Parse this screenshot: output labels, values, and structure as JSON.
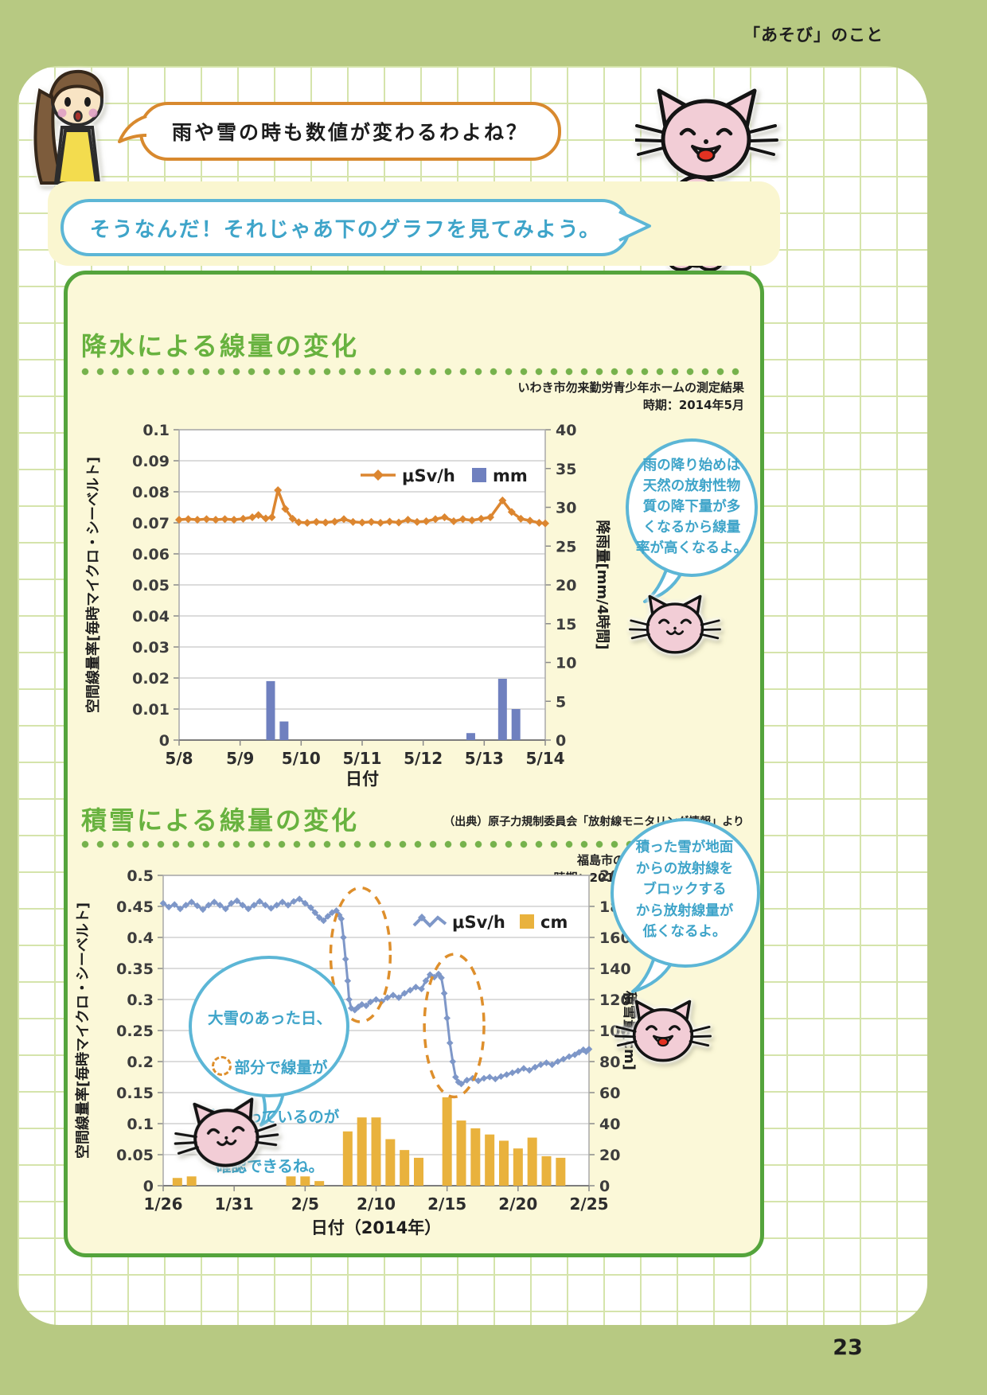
{
  "page": {
    "header": "「あそび」のこと",
    "page_number": "23"
  },
  "dialogue": {
    "girl_bubble": "雨や雪の時も数値が変わるわよね？",
    "reply_bubble": "そうなんだ！それじゃあ下のグラフを見てみよう。"
  },
  "section_rain": {
    "title": "降水による線量の変化",
    "source_line1": "いわき市勿来勤労青少年ホームの測定結果",
    "source_line2": "時期：2014年5月",
    "bubble": "雨の降り始めは\n天然の放射性物\n質の降下量が多\nくなるから線量\n率が高くなるよ。"
  },
  "section_snow": {
    "title": "積雪による線量の変化",
    "source_note": "（出典）原子力規制委員会「放射線モニタリング情報」より",
    "source_line1": "福島市の信夫山公園の測定結果",
    "source_line2": "時期：2014年1月26日～2月25日",
    "bubble_left_line1": "大雪のあった日、",
    "bubble_left_line2": "部分で線量が",
    "bubble_left_line3": "低くなっているのが",
    "bubble_left_line4": "確認できるね。",
    "bubble_right": "積った雪が地面\nからの放射線を\nブロックする\nから放射線量が\n低くなるよ。"
  },
  "chart_data": [
    {
      "id": "rain",
      "type": "line+bar",
      "title": "降水による線量の変化",
      "source": "いわき市勿来勤労青少年ホームの測定結果　時期：2014年5月",
      "xlabel": "日付",
      "x_range_days": [
        0,
        6
      ],
      "xticks": [
        {
          "day": 0,
          "label": "5/8"
        },
        {
          "day": 1,
          "label": "5/9"
        },
        {
          "day": 2,
          "label": "5/10"
        },
        {
          "day": 3,
          "label": "5/11"
        },
        {
          "day": 4,
          "label": "5/12"
        },
        {
          "day": 5,
          "label": "5/13"
        },
        {
          "day": 6,
          "label": "5/14"
        }
      ],
      "left_axis": {
        "label": "空間線量率[毎時マイクロ・シーベルト]",
        "min": 0,
        "max": 0.1,
        "step": 0.01
      },
      "right_axis": {
        "label": "降雨量[mm/4時間]",
        "min": 0,
        "max": 40,
        "step": 5
      },
      "legend": [
        {
          "label": "μSv/h",
          "swatch": "line-diamond",
          "color": "#dc8630"
        },
        {
          "label": "mm",
          "swatch": "square",
          "color": "#6f80bf"
        }
      ],
      "line_series": {
        "name": "μSv/h",
        "axis": "left",
        "color": "#dc8630",
        "points": [
          [
            0,
            0.071
          ],
          [
            0.15,
            0.0712
          ],
          [
            0.3,
            0.071
          ],
          [
            0.45,
            0.0712
          ],
          [
            0.6,
            0.071
          ],
          [
            0.75,
            0.0712
          ],
          [
            0.9,
            0.071
          ],
          [
            1.05,
            0.0713
          ],
          [
            1.2,
            0.0718
          ],
          [
            1.3,
            0.0725
          ],
          [
            1.42,
            0.0714
          ],
          [
            1.52,
            0.0718
          ],
          [
            1.62,
            0.0805
          ],
          [
            1.74,
            0.0745
          ],
          [
            1.86,
            0.0713
          ],
          [
            1.96,
            0.0702
          ],
          [
            2.1,
            0.07
          ],
          [
            2.25,
            0.0703
          ],
          [
            2.4,
            0.0701
          ],
          [
            2.55,
            0.0704
          ],
          [
            2.7,
            0.0712
          ],
          [
            2.85,
            0.0703
          ],
          [
            3,
            0.0701
          ],
          [
            3.15,
            0.0703
          ],
          [
            3.3,
            0.07
          ],
          [
            3.45,
            0.0704
          ],
          [
            3.6,
            0.0701
          ],
          [
            3.75,
            0.071
          ],
          [
            3.9,
            0.0703
          ],
          [
            4.05,
            0.0705
          ],
          [
            4.2,
            0.0712
          ],
          [
            4.35,
            0.0718
          ],
          [
            4.5,
            0.0705
          ],
          [
            4.65,
            0.0712
          ],
          [
            4.8,
            0.0708
          ],
          [
            4.95,
            0.0713
          ],
          [
            5.1,
            0.0718
          ],
          [
            5.3,
            0.0772
          ],
          [
            5.45,
            0.0735
          ],
          [
            5.6,
            0.0713
          ],
          [
            5.75,
            0.0707
          ],
          [
            5.9,
            0.07
          ],
          [
            6,
            0.0698
          ]
        ]
      },
      "bar_series": {
        "name": "mm",
        "axis": "right",
        "color": "#6f80bf",
        "bar_width_days": 0.14,
        "values": [
          [
            1.5,
            7.6
          ],
          [
            1.72,
            2.4
          ],
          [
            4.78,
            0.9
          ],
          [
            5.3,
            7.9
          ],
          [
            5.52,
            4.0
          ]
        ]
      }
    },
    {
      "id": "snow",
      "type": "line+bar",
      "title": "積雪による線量の変化",
      "source": "福島市の信夫山公園の測定結果　時期：2014年1月26日～2月25日",
      "xlabel": "日付（2014年）",
      "x_range_days": [
        0,
        30
      ],
      "xticks": [
        {
          "day": 0,
          "label": "1/26"
        },
        {
          "day": 5,
          "label": "1/31"
        },
        {
          "day": 10,
          "label": "2/5"
        },
        {
          "day": 15,
          "label": "2/10"
        },
        {
          "day": 20,
          "label": "2/15"
        },
        {
          "day": 25,
          "label": "2/20"
        },
        {
          "day": 30,
          "label": "2/25"
        }
      ],
      "left_axis": {
        "label": "空間線量率[毎時マイクロ・シーベルト]",
        "min": 0,
        "max": 0.5,
        "step": 0.05
      },
      "right_axis": {
        "label": "積雪量[cm]",
        "min": 0,
        "max": 200,
        "step": 20
      },
      "legend": [
        {
          "label": "μSv/h",
          "swatch": "zigzag",
          "color": "#7e97c8"
        },
        {
          "label": "cm",
          "swatch": "square",
          "color": "#e9b23d"
        }
      ],
      "line_series": {
        "name": "μSv/h",
        "axis": "left",
        "color": "#7e97c8",
        "points": [
          [
            0,
            0.455
          ],
          [
            0.4,
            0.449
          ],
          [
            0.8,
            0.453
          ],
          [
            1.2,
            0.446
          ],
          [
            1.6,
            0.452
          ],
          [
            2,
            0.457
          ],
          [
            2.4,
            0.451
          ],
          [
            2.8,
            0.445
          ],
          [
            3.2,
            0.452
          ],
          [
            3.6,
            0.457
          ],
          [
            4,
            0.452
          ],
          [
            4.4,
            0.446
          ],
          [
            4.8,
            0.455
          ],
          [
            5.2,
            0.459
          ],
          [
            5.6,
            0.452
          ],
          [
            6,
            0.446
          ],
          [
            6.4,
            0.452
          ],
          [
            6.8,
            0.458
          ],
          [
            7.2,
            0.452
          ],
          [
            7.6,
            0.447
          ],
          [
            8,
            0.452
          ],
          [
            8.4,
            0.457
          ],
          [
            8.8,
            0.452
          ],
          [
            9.2,
            0.458
          ],
          [
            9.6,
            0.462
          ],
          [
            10,
            0.455
          ],
          [
            10.4,
            0.448
          ],
          [
            10.7,
            0.44
          ],
          [
            11,
            0.432
          ],
          [
            11.3,
            0.427
          ],
          [
            11.6,
            0.434
          ],
          [
            11.9,
            0.44
          ],
          [
            12.2,
            0.443
          ],
          [
            12.4,
            0.436
          ],
          [
            12.55,
            0.43
          ],
          [
            12.7,
            0.4
          ],
          [
            12.85,
            0.365
          ],
          [
            13,
            0.33
          ],
          [
            13.1,
            0.3
          ],
          [
            13.25,
            0.286
          ],
          [
            13.5,
            0.283
          ],
          [
            13.75,
            0.288
          ],
          [
            14,
            0.292
          ],
          [
            14.3,
            0.29
          ],
          [
            14.6,
            0.296
          ],
          [
            15,
            0.3
          ],
          [
            15.4,
            0.297
          ],
          [
            15.8,
            0.303
          ],
          [
            16.2,
            0.307
          ],
          [
            16.6,
            0.303
          ],
          [
            17,
            0.31
          ],
          [
            17.4,
            0.315
          ],
          [
            17.8,
            0.32
          ],
          [
            18.2,
            0.317
          ],
          [
            18.5,
            0.33
          ],
          [
            18.8,
            0.34
          ],
          [
            19.1,
            0.336
          ],
          [
            19.4,
            0.341
          ],
          [
            19.6,
            0.335
          ],
          [
            19.8,
            0.31
          ],
          [
            20,
            0.27
          ],
          [
            20.2,
            0.23
          ],
          [
            20.4,
            0.2
          ],
          [
            20.6,
            0.175
          ],
          [
            20.8,
            0.167
          ],
          [
            21,
            0.164
          ],
          [
            21.4,
            0.17
          ],
          [
            21.8,
            0.173
          ],
          [
            22.2,
            0.169
          ],
          [
            22.6,
            0.173
          ],
          [
            23,
            0.175
          ],
          [
            23.4,
            0.172
          ],
          [
            23.8,
            0.176
          ],
          [
            24.2,
            0.179
          ],
          [
            24.6,
            0.182
          ],
          [
            25,
            0.185
          ],
          [
            25.4,
            0.189
          ],
          [
            25.8,
            0.186
          ],
          [
            26.2,
            0.191
          ],
          [
            26.6,
            0.195
          ],
          [
            27,
            0.198
          ],
          [
            27.4,
            0.195
          ],
          [
            27.8,
            0.2
          ],
          [
            28.2,
            0.204
          ],
          [
            28.6,
            0.208
          ],
          [
            29,
            0.211
          ],
          [
            29.3,
            0.215
          ],
          [
            29.6,
            0.219
          ],
          [
            29.8,
            0.216
          ],
          [
            30,
            0.22
          ]
        ]
      },
      "bar_series": {
        "name": "cm",
        "axis": "right",
        "color": "#e9b23d",
        "bar_width_days": 0.68,
        "values": [
          [
            1,
            5
          ],
          [
            2,
            6
          ],
          [
            9,
            6
          ],
          [
            10,
            6
          ],
          [
            11,
            3
          ],
          [
            13,
            35
          ],
          [
            14,
            44
          ],
          [
            15,
            44
          ],
          [
            16,
            30
          ],
          [
            17,
            23
          ],
          [
            18,
            18
          ],
          [
            20,
            57
          ],
          [
            21,
            42
          ],
          [
            22,
            37
          ],
          [
            23,
            33
          ],
          [
            24,
            29
          ],
          [
            25,
            24
          ],
          [
            26,
            31
          ],
          [
            27,
            19
          ],
          [
            28,
            18
          ]
        ]
      },
      "annotation_color": "#de8f2c",
      "annotations": [
        {
          "shape": "dashed-ellipse",
          "day": 13.9,
          "value": 0.372,
          "rx_days": 2.1,
          "ry_value": 0.108
        },
        {
          "shape": "dashed-ellipse",
          "day": 20.5,
          "value": 0.258,
          "rx_days": 2.1,
          "ry_value": 0.115
        }
      ]
    }
  ]
}
